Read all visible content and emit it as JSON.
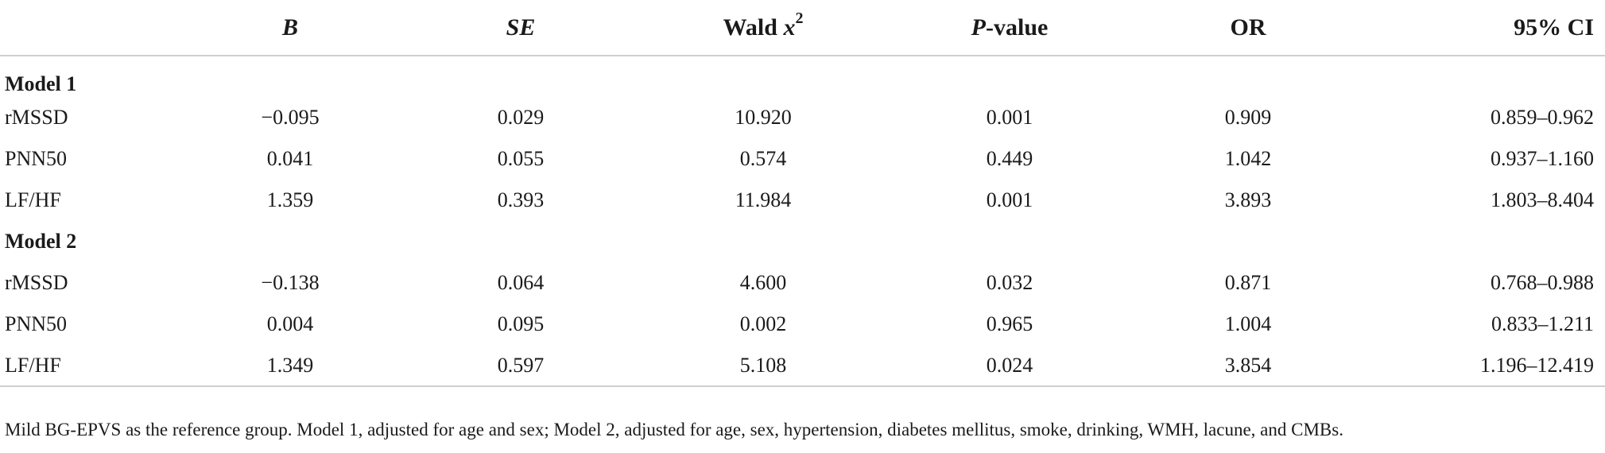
{
  "table": {
    "headers": {
      "label": "",
      "b": "B",
      "se": "SE",
      "wald_text": "Wald ",
      "wald_var": "x",
      "wald_sup": "2",
      "p_italic": "P",
      "p_rest": "-value",
      "or": "OR",
      "ci": "95% CI"
    },
    "groups": [
      {
        "title": "Model 1",
        "rows": [
          {
            "label": "rMSSD",
            "b": "−0.095",
            "se": "0.029",
            "wald": "10.920",
            "p": "0.001",
            "or": "0.909",
            "ci": "0.859–0.962"
          },
          {
            "label": "PNN50",
            "b": "0.041",
            "se": "0.055",
            "wald": "0.574",
            "p": "0.449",
            "or": "1.042",
            "ci": "0.937–1.160"
          },
          {
            "label": "LF/HF",
            "b": "1.359",
            "se": "0.393",
            "wald": "11.984",
            "p": "0.001",
            "or": "3.893",
            "ci": "1.803–8.404"
          }
        ]
      },
      {
        "title": "Model 2",
        "rows": [
          {
            "label": "rMSSD",
            "b": "−0.138",
            "se": "0.064",
            "wald": "4.600",
            "p": "0.032",
            "or": "0.871",
            "ci": "0.768–0.988"
          },
          {
            "label": "PNN50",
            "b": "0.004",
            "se": "0.095",
            "wald": "0.002",
            "p": "0.965",
            "or": "1.004",
            "ci": "0.833–1.211"
          },
          {
            "label": "LF/HF",
            "b": "1.349",
            "se": "0.597",
            "wald": "5.108",
            "p": "0.024",
            "or": "3.854",
            "ci": "1.196–12.419"
          }
        ]
      }
    ]
  },
  "footnote": "Mild BG-EPVS as the reference group. Model 1, adjusted for age and sex; Model 2, adjusted for age, sex, hypertension, diabetes mellitus, smoke, drinking, WMH, lacune, and CMBs."
}
